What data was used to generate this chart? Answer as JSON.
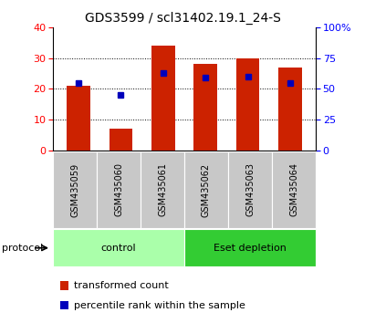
{
  "title": "GDS3599 / scl31402.19.1_24-S",
  "samples": [
    "GSM435059",
    "GSM435060",
    "GSM435061",
    "GSM435062",
    "GSM435063",
    "GSM435064"
  ],
  "red_values": [
    21.0,
    7.0,
    34.0,
    28.0,
    30.0,
    27.0
  ],
  "blue_values_pct": [
    55.0,
    45.0,
    63.0,
    59.0,
    60.0,
    55.0
  ],
  "left_ylim": [
    0,
    40
  ],
  "right_ylim": [
    0,
    100
  ],
  "left_yticks": [
    0,
    10,
    20,
    30,
    40
  ],
  "right_yticks": [
    0,
    25,
    50,
    75,
    100
  ],
  "right_yticklabels": [
    "0",
    "25",
    "50",
    "75",
    "100%"
  ],
  "bar_color": "#CC2200",
  "square_color": "#0000BB",
  "groups": [
    {
      "label": "control",
      "samples": [
        0,
        1,
        2
      ],
      "color": "#AAFFAA"
    },
    {
      "label": "Eset depletion",
      "samples": [
        3,
        4,
        5
      ],
      "color": "#33CC33"
    }
  ],
  "protocol_label": "protocol",
  "legend_items": [
    {
      "color": "#CC2200",
      "label": "transformed count"
    },
    {
      "color": "#0000BB",
      "label": "percentile rank within the sample"
    }
  ],
  "title_fontsize": 10,
  "tick_label_fontsize": 8,
  "sample_fontsize": 7,
  "group_fontsize": 8,
  "legend_fontsize": 8
}
